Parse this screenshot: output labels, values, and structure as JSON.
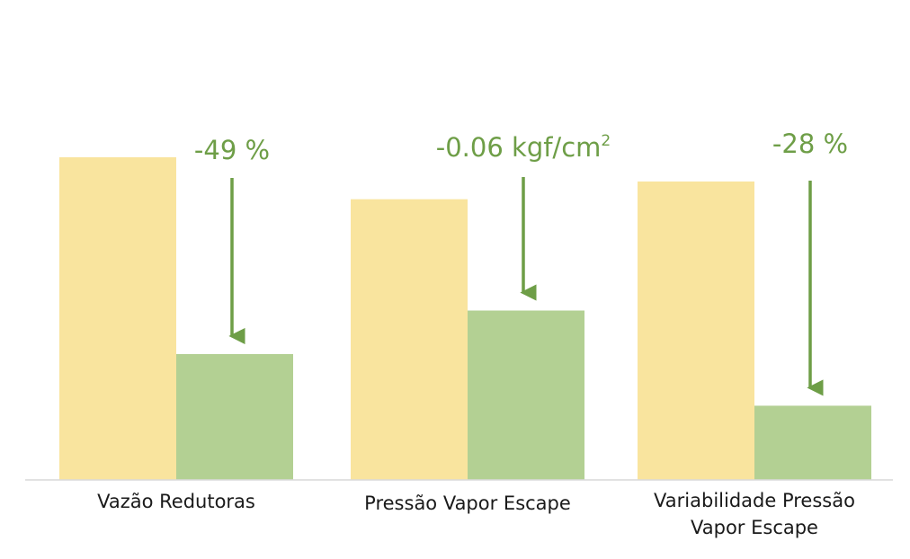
{
  "chart_data": {
    "type": "bar",
    "categories": [
      [
        "Vazão Redutoras"
      ],
      [
        "Pressão Vapor Escape"
      ],
      [
        "Variabilidade Pressão",
        "Vapor Escape"
      ]
    ],
    "series": [
      {
        "color": "#f9e49e",
        "values": [
          100,
          87,
          92.5
        ]
      },
      {
        "color": "#b3d093",
        "values": [
          39,
          52.5,
          23
        ]
      }
    ],
    "ylim": [
      0,
      100
    ],
    "grid": false,
    "legend": "none",
    "annotations": [
      {
        "value": "-49 %",
        "unit_sup": ""
      },
      {
        "value": "-0.06 kgf/cm",
        "unit_sup": "2"
      },
      {
        "value": "-28 %",
        "unit_sup": ""
      }
    ],
    "arrow_color": "#6e9e47",
    "axis_color": "#d9d9d9"
  }
}
